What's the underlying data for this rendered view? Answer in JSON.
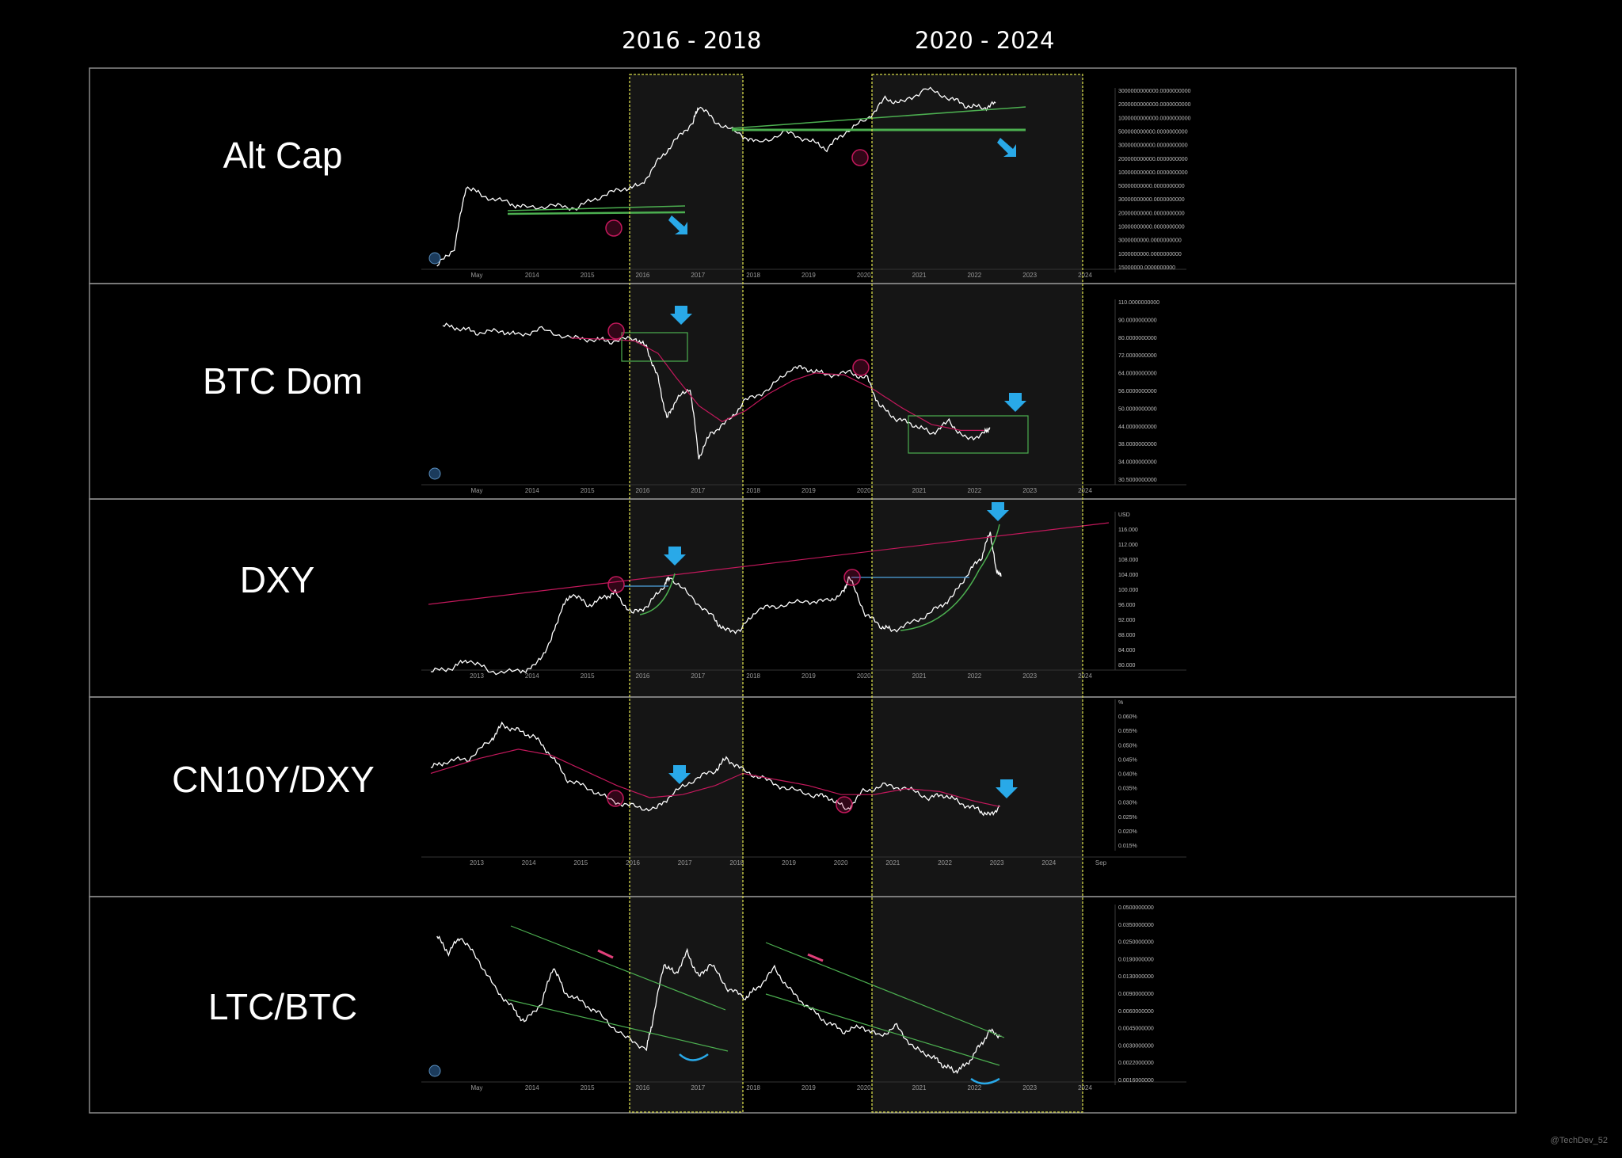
{
  "header": {
    "period_1": "2016 - 2018",
    "period_2": "2020 - 2024"
  },
  "credit": "@TechDev_52",
  "colors": {
    "background": "#000000",
    "price_line": "#ffffff",
    "moving_average": "#c2185b",
    "trendline": "#4caf50",
    "highlight_border": "#d4d84a",
    "marker_circle": "#c2185b",
    "arrow": "#29a9e8"
  },
  "chart_data": [
    {
      "type": "line",
      "title": "Alt Cap",
      "x_ticks": [
        "May",
        "2014",
        "2015",
        "2016",
        "2017",
        "2018",
        "2019",
        "2020",
        "2021",
        "2022",
        "2023",
        "2024"
      ],
      "y_ticks": [
        "3000000000000.0000000000",
        "2000000000000.0000000000",
        "1000000000000.0000000000",
        "500000000000.0000000000",
        "300000000000.0000000000",
        "200000000000.0000000000",
        "100000000000.0000000000",
        "50000000000.0000000000",
        "30000000000.0000000000",
        "20000000000.0000000000",
        "10000000000.0000000000",
        "3000000000.0000000000",
        "1000000000.0000000000",
        "15000000.0000000000"
      ],
      "xlim": [
        2013.3,
        2024.5
      ],
      "log_scale": true,
      "series": [
        {
          "values": [
            [
              2013.5,
              15000000
            ],
            [
              2013.8,
              50000000
            ],
            [
              2014.0,
              3000000000
            ],
            [
              2014.3,
              1500000000
            ],
            [
              2014.7,
              1000000000
            ],
            [
              2015.0,
              700000000
            ],
            [
              2015.5,
              800000000
            ],
            [
              2015.9,
              700000000
            ],
            [
              2016.3,
              1500000000
            ],
            [
              2016.7,
              2500000000
            ],
            [
              2017.0,
              3000000000
            ],
            [
              2017.3,
              15000000000
            ],
            [
              2017.6,
              60000000000
            ],
            [
              2017.9,
              200000000000
            ],
            [
              2018.0,
              600000000000
            ],
            [
              2018.3,
              200000000000
            ],
            [
              2018.7,
              90000000000
            ],
            [
              2019.0,
              50000000000
            ],
            [
              2019.5,
              100000000000
            ],
            [
              2019.9,
              60000000000
            ],
            [
              2020.2,
              35000000000
            ],
            [
              2020.5,
              100000000000
            ],
            [
              2020.9,
              250000000000
            ],
            [
              2021.2,
              900000000000
            ],
            [
              2021.5,
              700000000000
            ],
            [
              2021.9,
              1800000000000
            ],
            [
              2022.3,
              1000000000000
            ],
            [
              2022.6,
              600000000000
            ],
            [
              2022.9,
              500000000000
            ],
            [
              2023.1,
              700000000000
            ]
          ]
        }
      ],
      "annotations": [
        "green horizontal trendlines",
        "2 pink marker circles",
        "2 blue arrows"
      ]
    },
    {
      "type": "line",
      "title": "BTC Dom",
      "x_ticks": [
        "May",
        "2014",
        "2015",
        "2016",
        "2017",
        "2018",
        "2019",
        "2020",
        "2021",
        "2022",
        "2023",
        "2024"
      ],
      "y_ticks": [
        "110.0000000000",
        "90.0000000000",
        "80.0000000000",
        "72.0000000000",
        "64.0000000000",
        "56.0000000000",
        "50.0000000000",
        "44.0000000000",
        "38.0000000000",
        "34.0000000000",
        "30.5000000000"
      ],
      "xlim": [
        2013.3,
        2024.5
      ],
      "ylim": [
        30.5,
        110
      ],
      "log_scale": true,
      "series": [
        {
          "values": [
            [
              2013.6,
              95
            ],
            [
              2013.9,
              93
            ],
            [
              2014.2,
              90
            ],
            [
              2014.6,
              91
            ],
            [
              2014.9,
              88
            ],
            [
              2015.3,
              92
            ],
            [
              2015.8,
              86
            ],
            [
              2016.2,
              85
            ],
            [
              2016.5,
              84
            ],
            [
              2016.9,
              86
            ],
            [
              2017.1,
              80
            ],
            [
              2017.3,
              62
            ],
            [
              2017.45,
              45
            ],
            [
              2017.6,
              52
            ],
            [
              2017.85,
              58
            ],
            [
              2018.0,
              33
            ],
            [
              2018.2,
              40
            ],
            [
              2018.5,
              44
            ],
            [
              2018.8,
              52
            ],
            [
              2019.2,
              57
            ],
            [
              2019.6,
              68
            ],
            [
              2019.9,
              67
            ],
            [
              2020.2,
              64
            ],
            [
              2020.6,
              65
            ],
            [
              2020.9,
              62
            ],
            [
              2021.1,
              50
            ],
            [
              2021.4,
              45
            ],
            [
              2021.7,
              43
            ],
            [
              2022.0,
              40
            ],
            [
              2022.3,
              44
            ],
            [
              2022.6,
              38
            ],
            [
              2022.9,
              40
            ],
            [
              2023.0,
              42
            ]
          ]
        },
        {
          "values": [
            [
              2015.8,
              86
            ],
            [
              2016.5,
              85
            ],
            [
              2016.9,
              84
            ],
            [
              2017.3,
              76
            ],
            [
              2017.6,
              63
            ],
            [
              2018.0,
              50
            ],
            [
              2018.4,
              44
            ],
            [
              2018.8,
              48
            ],
            [
              2019.2,
              55
            ],
            [
              2019.6,
              61
            ],
            [
              2020.0,
              65
            ],
            [
              2020.5,
              64
            ],
            [
              2021.0,
              57
            ],
            [
              2021.5,
              49
            ],
            [
              2022.0,
              43
            ],
            [
              2022.5,
              41
            ],
            [
              2022.9,
              41
            ]
          ]
        }
      ],
      "annotations": [
        "green boxes",
        "2 pink marker circles",
        "2 blue arrows"
      ]
    },
    {
      "type": "line",
      "title": "DXY",
      "x_ticks": [
        "2013",
        "2014",
        "2015",
        "2016",
        "2017",
        "2018",
        "2019",
        "2020",
        "2021",
        "2022",
        "2023",
        "2024"
      ],
      "y_ticks": [
        "USD",
        "116.000",
        "112.000",
        "108.000",
        "104.000",
        "100.000",
        "96.000",
        "92.000",
        "88.000",
        "84.000",
        "80.000"
      ],
      "xlim": [
        2012.5,
        2024.5
      ],
      "ylim": [
        80,
        116
      ],
      "series": [
        {
          "values": [
            [
              2012.6,
              80
            ],
            [
              2013.0,
              81
            ],
            [
              2013.3,
              83
            ],
            [
              2013.7,
              80
            ],
            [
              2014.2,
              80
            ],
            [
              2014.5,
              81
            ],
            [
              2014.8,
              87
            ],
            [
              2015.0,
              95
            ],
            [
              2015.2,
              99
            ],
            [
              2015.5,
              96
            ],
            [
              2015.8,
              98
            ],
            [
              2016.0,
              99
            ],
            [
              2016.3,
              94
            ],
            [
              2016.6,
              96
            ],
            [
              2016.9,
              101
            ],
            [
              2017.0,
              103
            ],
            [
              2017.4,
              98
            ],
            [
              2017.8,
              93
            ],
            [
              2018.0,
              90
            ],
            [
              2018.3,
              90
            ],
            [
              2018.6,
              95
            ],
            [
              2019.0,
              96
            ],
            [
              2019.5,
              97
            ],
            [
              2019.9,
              97
            ],
            [
              2020.2,
              99
            ],
            [
              2020.3,
              103
            ],
            [
              2020.6,
              94
            ],
            [
              2020.9,
              91
            ],
            [
              2021.1,
              90
            ],
            [
              2021.5,
              92
            ],
            [
              2021.9,
              95
            ],
            [
              2022.2,
              98
            ],
            [
              2022.5,
              104
            ],
            [
              2022.75,
              108
            ],
            [
              2022.9,
              114
            ],
            [
              2023.0,
              105
            ],
            [
              2023.1,
              103
            ]
          ]
        }
      ],
      "annotations": [
        "pink rising trendline",
        "blue horizontal lines",
        "green curves",
        "2 pink marker circles",
        "2 blue arrows"
      ]
    },
    {
      "type": "line",
      "title": "CN10Y/DXY",
      "x_ticks": [
        "2013",
        "2014",
        "2015",
        "2016",
        "2017",
        "2018",
        "2019",
        "2020",
        "2021",
        "2022",
        "2023",
        "2024",
        "Sep"
      ],
      "y_ticks": [
        "%",
        "0.060%",
        "0.055%",
        "0.050%",
        "0.045%",
        "0.040%",
        "0.035%",
        "0.030%",
        "0.025%",
        "0.020%",
        "0.015%"
      ],
      "xlim": [
        2012.5,
        2024.7
      ],
      "ylim": [
        0.015,
        0.06
      ],
      "series": [
        {
          "values": [
            [
              2012.6,
              0.042
            ],
            [
              2012.9,
              0.044
            ],
            [
              2013.3,
              0.045
            ],
            [
              2013.7,
              0.051
            ],
            [
              2013.9,
              0.056
            ],
            [
              2014.2,
              0.054
            ],
            [
              2014.5,
              0.052
            ],
            [
              2014.8,
              0.046
            ],
            [
              2015.1,
              0.038
            ],
            [
              2015.5,
              0.035
            ],
            [
              2015.9,
              0.031
            ],
            [
              2016.3,
              0.029
            ],
            [
              2016.7,
              0.028
            ],
            [
              2017.0,
              0.033
            ],
            [
              2017.4,
              0.038
            ],
            [
              2017.8,
              0.041
            ],
            [
              2018.0,
              0.045
            ],
            [
              2018.3,
              0.041
            ],
            [
              2018.7,
              0.038
            ],
            [
              2019.1,
              0.035
            ],
            [
              2019.6,
              0.033
            ],
            [
              2019.9,
              0.032
            ],
            [
              2020.2,
              0.028
            ],
            [
              2020.5,
              0.034
            ],
            [
              2020.9,
              0.036
            ],
            [
              2021.3,
              0.035
            ],
            [
              2021.7,
              0.032
            ],
            [
              2022.0,
              0.033
            ],
            [
              2022.3,
              0.03
            ],
            [
              2022.6,
              0.028
            ],
            [
              2022.8,
              0.026
            ],
            [
              2023.0,
              0.029
            ]
          ]
        },
        {
          "values": [
            [
              2012.6,
              0.04
            ],
            [
              2013.5,
              0.045
            ],
            [
              2014.2,
              0.048
            ],
            [
              2014.8,
              0.046
            ],
            [
              2015.4,
              0.041
            ],
            [
              2016.0,
              0.036
            ],
            [
              2016.6,
              0.032
            ],
            [
              2017.2,
              0.033
            ],
            [
              2017.8,
              0.036
            ],
            [
              2018.3,
              0.04
            ],
            [
              2018.9,
              0.038
            ],
            [
              2019.5,
              0.036
            ],
            [
              2020.1,
              0.033
            ],
            [
              2020.7,
              0.033
            ],
            [
              2021.3,
              0.035
            ],
            [
              2021.9,
              0.034
            ],
            [
              2022.5,
              0.031
            ],
            [
              2023.0,
              0.029
            ]
          ]
        }
      ],
      "annotations": [
        "2 pink marker circles",
        "2 blue arrows"
      ]
    },
    {
      "type": "line",
      "title": "LTC/BTC",
      "x_ticks": [
        "May",
        "2014",
        "2015",
        "2016",
        "2017",
        "2018",
        "2019",
        "2020",
        "2021",
        "2022",
        "2023",
        "2024"
      ],
      "y_ticks": [
        "0.0500000000",
        "0.0350000000",
        "0.0250000000",
        "0.0190000000",
        "0.0130000000",
        "0.0090000000",
        "0.0060000000",
        "0.0045000000",
        "0.0030000000",
        "0.0022000000",
        "0.0016000000"
      ],
      "xlim": [
        2013.3,
        2024.5
      ],
      "ylim": [
        0.0016,
        0.05
      ],
      "log_scale": true,
      "series": [
        {
          "values": [
            [
              2013.5,
              0.035
            ],
            [
              2013.7,
              0.025
            ],
            [
              2013.9,
              0.035
            ],
            [
              2014.2,
              0.022
            ],
            [
              2014.5,
              0.012
            ],
            [
              2014.8,
              0.008
            ],
            [
              2015.0,
              0.006
            ],
            [
              2015.3,
              0.009
            ],
            [
              2015.5,
              0.019
            ],
            [
              2015.7,
              0.011
            ],
            [
              2016.0,
              0.009
            ],
            [
              2016.3,
              0.007
            ],
            [
              2016.7,
              0.0045
            ],
            [
              2017.1,
              0.0035
            ],
            [
              2017.2,
              0.006
            ],
            [
              2017.4,
              0.02
            ],
            [
              2017.6,
              0.016
            ],
            [
              2017.8,
              0.025
            ],
            [
              2018.0,
              0.015
            ],
            [
              2018.2,
              0.02
            ],
            [
              2018.5,
              0.012
            ],
            [
              2018.8,
              0.01
            ],
            [
              2019.0,
              0.012
            ],
            [
              2019.3,
              0.018
            ],
            [
              2019.6,
              0.011
            ],
            [
              2019.9,
              0.008
            ],
            [
              2020.2,
              0.006
            ],
            [
              2020.5,
              0.005
            ],
            [
              2020.8,
              0.0055
            ],
            [
              2021.1,
              0.0045
            ],
            [
              2021.4,
              0.0055
            ],
            [
              2021.7,
              0.0035
            ],
            [
              2022.0,
              0.003
            ],
            [
              2022.2,
              0.0025
            ],
            [
              2022.4,
              0.0022
            ],
            [
              2022.6,
              0.0025
            ],
            [
              2022.8,
              0.0035
            ],
            [
              2023.0,
              0.005
            ],
            [
              2023.2,
              0.0045
            ]
          ]
        }
      ],
      "annotations": [
        "green descending channel",
        "pink dashes",
        "blue smile arcs"
      ]
    }
  ]
}
